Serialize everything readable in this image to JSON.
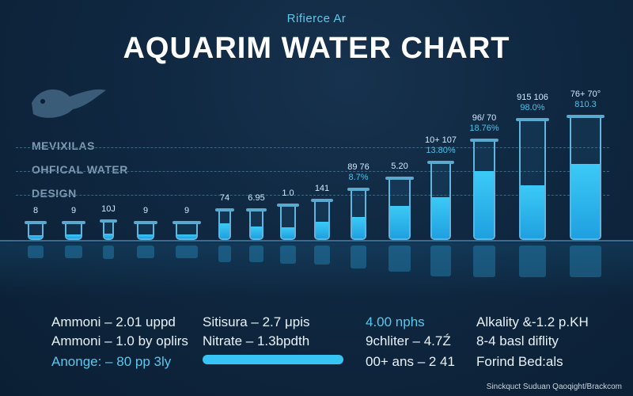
{
  "header": {
    "subtitle": "Rifierce Ar",
    "title": "AQUARIM WATER CHART"
  },
  "side_labels": [
    "MEVIXILAS",
    "OHFICAL WATER",
    "DESIGN"
  ],
  "tubes": [
    {
      "label1": "8",
      "label2": "",
      "fill": 0.25
    },
    {
      "label1": "9",
      "label2": "",
      "fill": 0.3
    },
    {
      "label1": "10J",
      "label2": "",
      "fill": 0.3
    },
    {
      "label1": "9",
      "label2": "",
      "fill": 0.3
    },
    {
      "label1": "9",
      "label2": "",
      "fill": 0.3
    },
    {
      "label1": "74",
      "label2": "",
      "fill": 0.55
    },
    {
      "label1": "6.95",
      "label2": "",
      "fill": 0.45
    },
    {
      "label1": "1.0",
      "label2": "",
      "fill": 0.35
    },
    {
      "label1": "141",
      "label2": "",
      "fill": 0.45
    },
    {
      "label1": "89 76",
      "label2": "8.7%",
      "fill": 0.45
    },
    {
      "label1": "5.20",
      "label2": "",
      "fill": 0.55
    },
    {
      "label1": "10+ 107",
      "label2": "13.80%",
      "fill": 0.55
    },
    {
      "label1": "96/ 70",
      "label2": "18.76%",
      "fill": 0.7
    },
    {
      "label1": "915 106",
      "label2": "98.0%",
      "fill": 0.45
    },
    {
      "label1": "76+ 70°",
      "label2": "810.3",
      "fill": 0.62
    }
  ],
  "info": {
    "col1": [
      "Ammoni – 2.01 uppd",
      "Ammoni – 1.0 by oplirs",
      "Anonge: – 80 pp 3ly"
    ],
    "col2": [
      "Sitisura – 2.7 μpis",
      "Nitrate – 1.3bpdth"
    ],
    "col3": [
      "4.00 nphs",
      "9chliter – 4.7Ź",
      "00+ ans – 2 41"
    ],
    "col4": [
      "Alkality &-1.2 p.KH",
      "8-4 basl diflity",
      "Forind Bed:als"
    ]
  },
  "slider": {
    "level": 1.0
  },
  "credit": "Sinckquct Suduan Qaoqight/Brackcom",
  "colors": {
    "accent": "#37c3f3",
    "background": "#0f2740",
    "title": "#ffffff"
  }
}
